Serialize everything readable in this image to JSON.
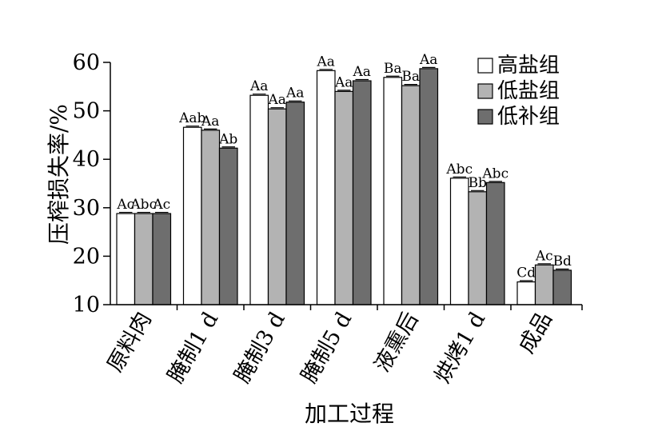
{
  "chart_data": {
    "type": "bar",
    "xlabel": "加工过程",
    "ylabel": "压榨损失率/%",
    "ylim": [
      10,
      60
    ],
    "yticks": [
      10,
      20,
      30,
      40,
      50,
      60
    ],
    "grid": false,
    "legend_position": "top-right",
    "categories": [
      "原料肉",
      "腌制1 d",
      "腌制3 d",
      "腌制5 d",
      "液熏后",
      "烘烤1 d",
      "成品"
    ],
    "series": [
      {
        "name": "高盐组",
        "color": "#ffffff",
        "values": [
          28.8,
          46.6,
          53.2,
          58.3,
          56.9,
          36.1,
          14.7
        ],
        "labels": [
          "Ac",
          "Aab",
          "Aa",
          "Aa",
          "Ba",
          "Abc",
          "Cd"
        ]
      },
      {
        "name": "低盐组",
        "color": "#b3b3b3",
        "values": [
          28.8,
          46.0,
          50.4,
          54.0,
          55.2,
          33.3,
          18.2
        ],
        "labels": [
          "Abc",
          "Aa",
          "Aa",
          "Aa",
          "Ba",
          "Bb",
          "Ac"
        ]
      },
      {
        "name": "低补组",
        "color": "#6e6e6e",
        "values": [
          28.8,
          42.3,
          51.8,
          56.2,
          58.7,
          35.2,
          17.1
        ],
        "labels": [
          "Ac",
          "Ab",
          "Aa",
          "Aa",
          "Aa",
          "Abc",
          "Bd"
        ]
      }
    ]
  }
}
